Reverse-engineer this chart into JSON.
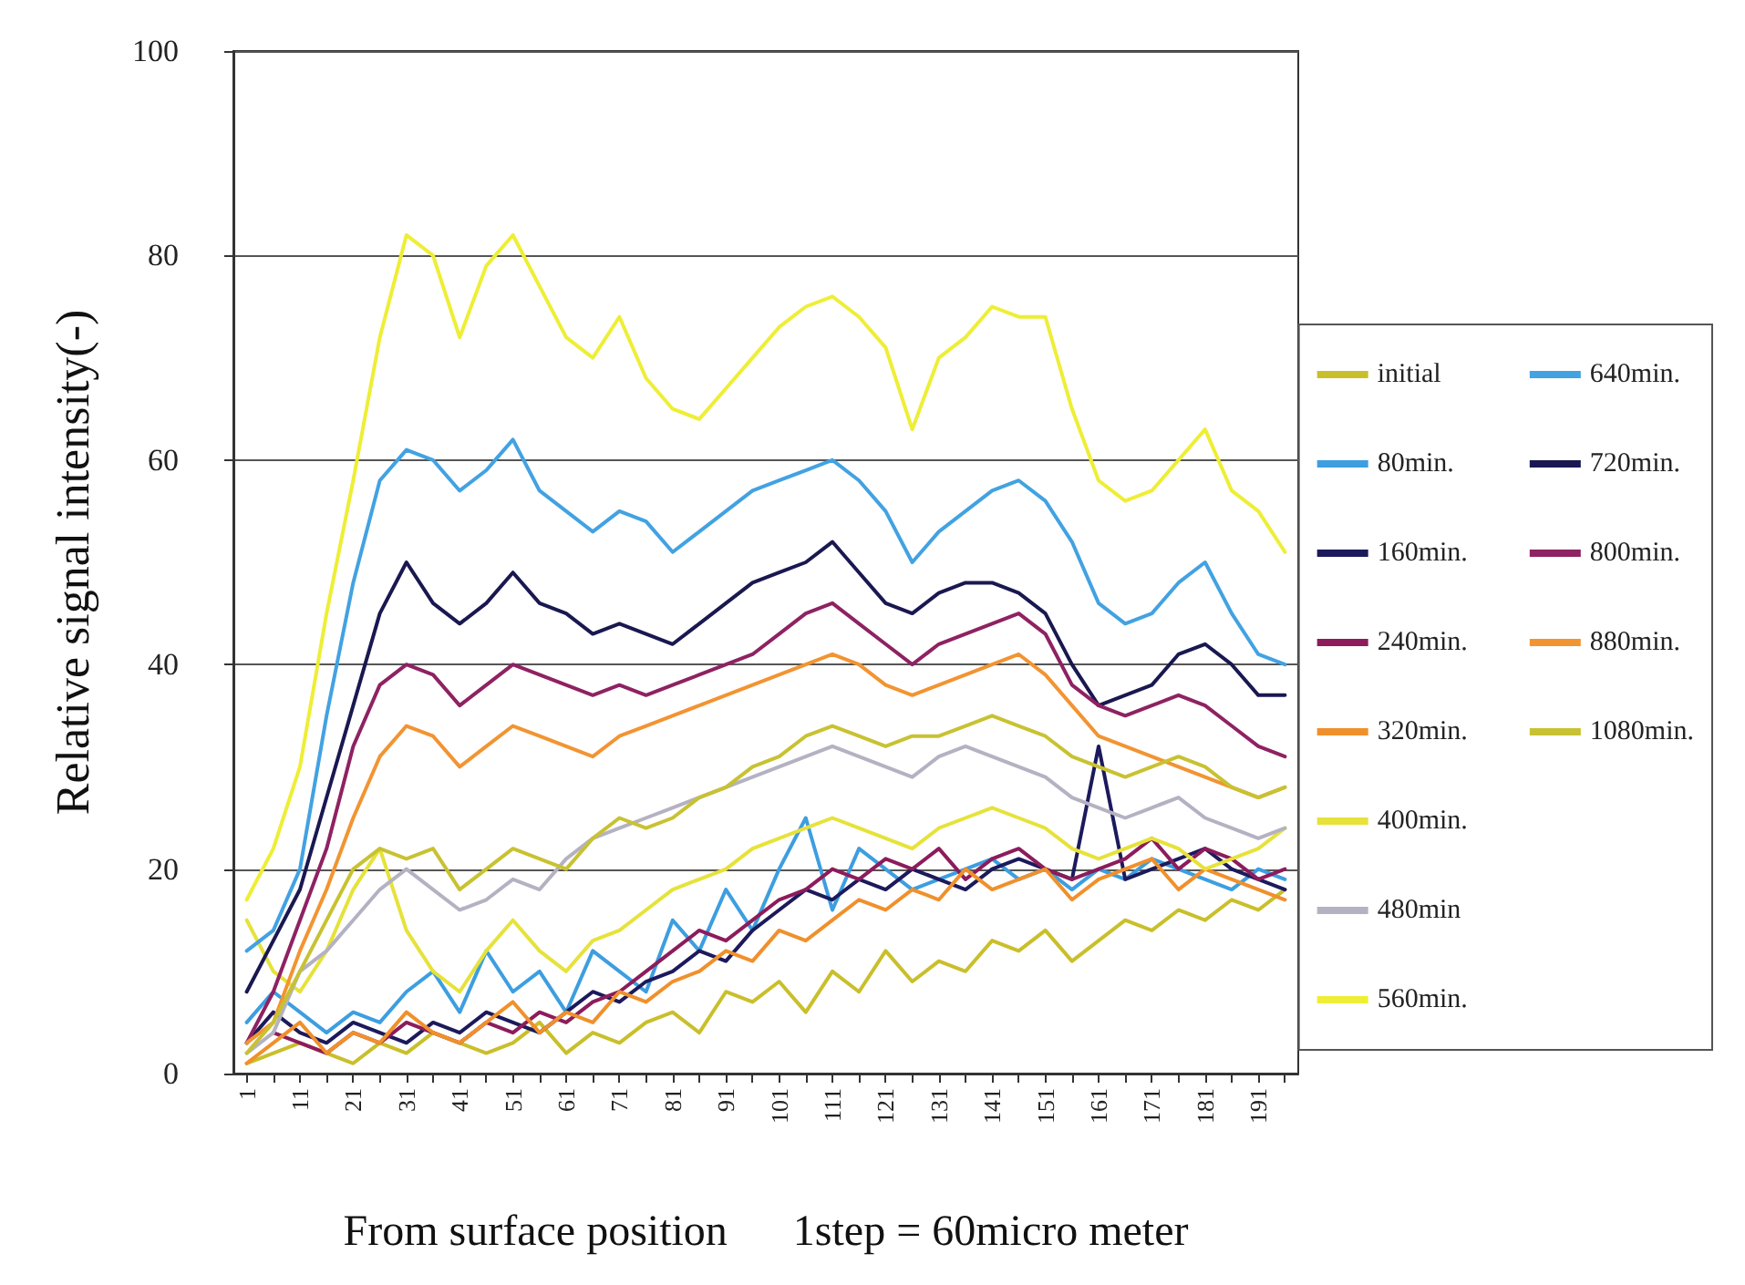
{
  "chart_data": {
    "type": "line",
    "xlabel": "From surface position      1step = 60micro meter",
    "ylabel": "Relative signal intensity(-)",
    "categories": [
      "1",
      null,
      "11",
      null,
      "21",
      null,
      "31",
      null,
      "41",
      null,
      "51",
      null,
      "61",
      null,
      "71",
      null,
      "81",
      null,
      "91",
      null,
      "101",
      null,
      "111",
      null,
      "121",
      null,
      "131",
      null,
      "141",
      null,
      "151",
      null,
      "161",
      null,
      "171",
      null,
      "181",
      null,
      "191",
      null
    ],
    "series": [
      {
        "name": "initial",
        "color": "#c9bf2a",
        "values": [
          1,
          2,
          3,
          2,
          1,
          3,
          2,
          4,
          3,
          2,
          3,
          5,
          2,
          4,
          3,
          5,
          6,
          4,
          8,
          7,
          9,
          6,
          10,
          8,
          12,
          9,
          11,
          10,
          13,
          12,
          14,
          11,
          13,
          15,
          14,
          16,
          15,
          17,
          16,
          18
        ]
      },
      {
        "name": "80min.",
        "color": "#3d9ee0",
        "values": [
          5,
          8,
          6,
          4,
          6,
          5,
          8,
          10,
          6,
          12,
          8,
          10,
          6,
          12,
          10,
          8,
          15,
          12,
          18,
          14,
          20,
          25,
          16,
          22,
          20,
          18,
          19,
          20,
          21,
          19,
          20,
          18,
          20,
          19,
          21,
          20,
          19,
          18,
          20,
          19
        ]
      },
      {
        "name": "160min.",
        "color": "#1c1a5c",
        "values": [
          3,
          6,
          4,
          3,
          5,
          4,
          3,
          5,
          4,
          6,
          5,
          4,
          6,
          8,
          7,
          9,
          10,
          12,
          11,
          14,
          16,
          18,
          17,
          19,
          18,
          20,
          19,
          18,
          20,
          21,
          20,
          19,
          32,
          19,
          20,
          21,
          22,
          20,
          19,
          18
        ]
      },
      {
        "name": "240min.",
        "color": "#8c1c5c",
        "values": [
          null,
          4,
          3,
          2,
          4,
          3,
          5,
          4,
          3,
          5,
          4,
          6,
          5,
          7,
          8,
          10,
          12,
          14,
          13,
          15,
          17,
          18,
          20,
          19,
          21,
          20,
          22,
          19,
          21,
          22,
          20,
          19,
          20,
          21,
          23,
          20,
          22,
          21,
          19,
          20
        ]
      },
      {
        "name": "320min.",
        "color": "#f0902c",
        "values": [
          1,
          3,
          5,
          2,
          4,
          3,
          6,
          4,
          3,
          5,
          7,
          4,
          6,
          5,
          8,
          7,
          9,
          10,
          12,
          11,
          14,
          13,
          15,
          17,
          16,
          18,
          17,
          20,
          18,
          19,
          20,
          17,
          19,
          20,
          21,
          18,
          20,
          19,
          18,
          17
        ]
      },
      {
        "name": "400min.",
        "color": "#e6e23a",
        "values": [
          15,
          10,
          8,
          12,
          18,
          22,
          14,
          10,
          8,
          12,
          15,
          12,
          10,
          13,
          14,
          16,
          18,
          19,
          20,
          22,
          23,
          24,
          25,
          24,
          23,
          22,
          24,
          25,
          26,
          25,
          24,
          22,
          21,
          22,
          23,
          22,
          20,
          21,
          22,
          24
        ]
      },
      {
        "name": "480min",
        "color": "#b4b2c2",
        "values": [
          2,
          4,
          10,
          12,
          15,
          18,
          20,
          18,
          16,
          17,
          19,
          18,
          21,
          23,
          24,
          25,
          26,
          27,
          28,
          29,
          30,
          31,
          32,
          31,
          30,
          29,
          31,
          32,
          31,
          30,
          29,
          27,
          26,
          25,
          26,
          27,
          25,
          24,
          23,
          24
        ]
      },
      {
        "name": "560min.",
        "color": "#eeee36",
        "values": [
          17,
          22,
          30,
          45,
          58,
          72,
          82,
          80,
          72,
          79,
          82,
          77,
          72,
          70,
          74,
          68,
          65,
          64,
          67,
          70,
          73,
          75,
          76,
          74,
          71,
          63,
          70,
          72,
          75,
          74,
          74,
          65,
          58,
          56,
          57,
          60,
          63,
          57,
          55,
          51
        ]
      },
      {
        "name": "640min.",
        "color": "#42a2e2",
        "values": [
          12,
          14,
          20,
          35,
          48,
          58,
          61,
          60,
          57,
          59,
          62,
          57,
          55,
          53,
          55,
          54,
          51,
          53,
          55,
          57,
          58,
          59,
          60,
          58,
          55,
          50,
          53,
          55,
          57,
          58,
          56,
          52,
          46,
          44,
          45,
          48,
          50,
          45,
          41,
          40
        ]
      },
      {
        "name": "720min.",
        "color": "#1a1850",
        "values": [
          8,
          13,
          18,
          27,
          36,
          45,
          50,
          46,
          44,
          46,
          49,
          46,
          45,
          43,
          44,
          43,
          42,
          44,
          46,
          48,
          49,
          50,
          52,
          49,
          46,
          45,
          47,
          48,
          48,
          47,
          45,
          40,
          36,
          37,
          38,
          41,
          42,
          40,
          37,
          37
        ]
      },
      {
        "name": "800min.",
        "color": "#8e2262",
        "values": [
          3,
          8,
          15,
          22,
          32,
          38,
          40,
          39,
          36,
          38,
          40,
          39,
          38,
          37,
          38,
          37,
          38,
          39,
          40,
          41,
          43,
          45,
          46,
          44,
          42,
          40,
          42,
          43,
          44,
          45,
          43,
          38,
          36,
          35,
          36,
          37,
          36,
          34,
          32,
          31
        ]
      },
      {
        "name": "880min.",
        "color": "#f29432",
        "values": [
          3,
          5,
          12,
          18,
          25,
          31,
          34,
          33,
          30,
          32,
          34,
          33,
          32,
          31,
          33,
          34,
          35,
          36,
          37,
          38,
          39,
          40,
          41,
          40,
          38,
          37,
          38,
          39,
          40,
          41,
          39,
          36,
          33,
          32,
          31,
          30,
          29,
          28,
          27,
          28
        ]
      },
      {
        "name": "1080min.",
        "color": "#c8c232",
        "values": [
          2,
          5,
          10,
          15,
          20,
          22,
          21,
          22,
          18,
          20,
          22,
          21,
          20,
          23,
          25,
          24,
          25,
          27,
          28,
          30,
          31,
          33,
          34,
          33,
          32,
          33,
          33,
          34,
          35,
          34,
          33,
          31,
          30,
          29,
          30,
          31,
          30,
          28,
          27,
          28
        ]
      }
    ],
    "ylim": [
      0,
      100
    ],
    "yticks": [
      0,
      20,
      40,
      60,
      80,
      100
    ],
    "grid": "y",
    "legend": "right",
    "marker": "none",
    "line_style": "solid"
  }
}
